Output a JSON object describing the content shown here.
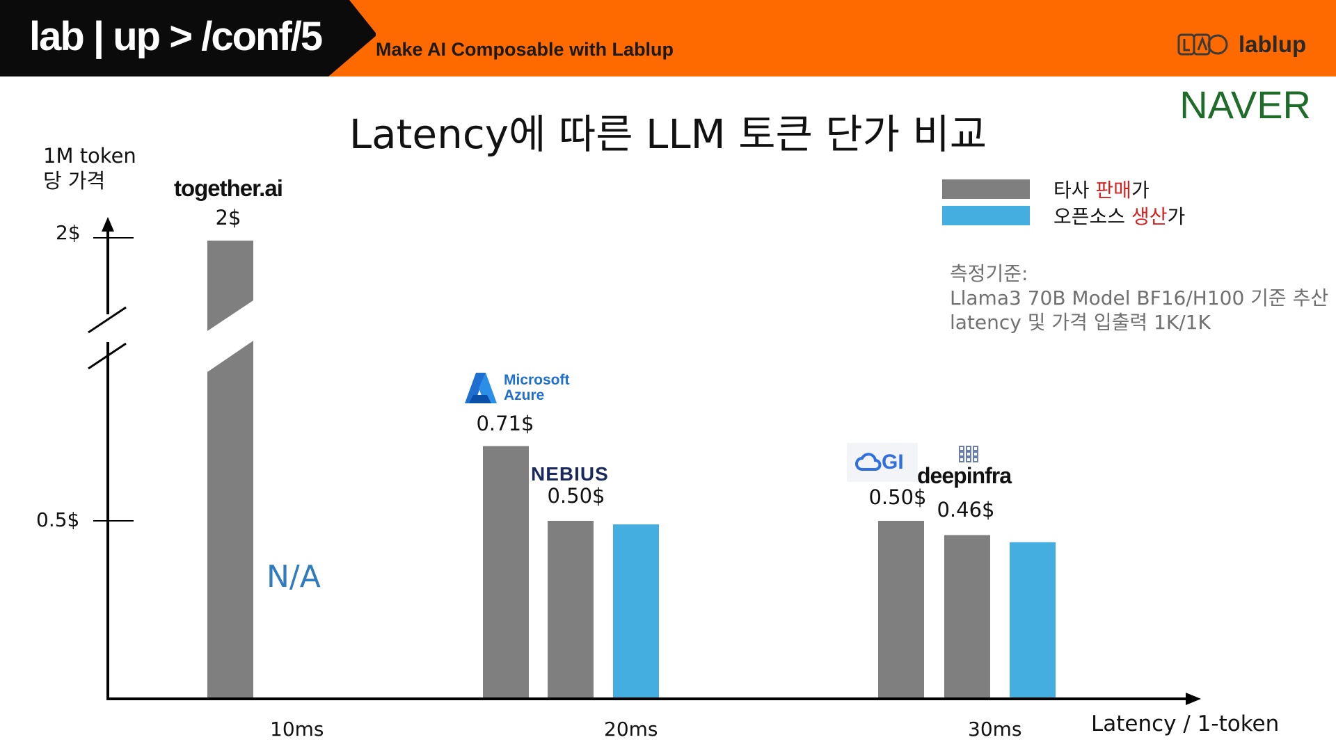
{
  "header": {
    "brand": "lab | up > /conf/5",
    "tagline": "Make AI Composable with Lablup",
    "logo_text": "lablup",
    "naver": "NAVER"
  },
  "chart_data": {
    "type": "bar",
    "title": "Latency에 따른 LLM 토큰 단가 비교",
    "ylabel": "1M token\n당 가격",
    "xlabel": "Latency / 1-token",
    "categories": [
      "10ms",
      "20ms",
      "30ms"
    ],
    "y_ticks": [
      {
        "label": "2$",
        "value": 2.0
      },
      {
        "label": "0.5$",
        "value": 0.5
      }
    ],
    "axis_break": true,
    "legend": {
      "items": [
        {
          "text_parts": [
            {
              "t": "타사 ",
              "red": false
            },
            {
              "t": "판매",
              "red": true
            },
            {
              "t": "가",
              "red": false
            }
          ],
          "color": "#7f7f7f"
        },
        {
          "text_parts": [
            {
              "t": "오픈소스 ",
              "red": false
            },
            {
              "t": "생산",
              "red": true
            },
            {
              "t": "가",
              "red": false
            }
          ],
          "color": "#45aee0"
        }
      ]
    },
    "bars": [
      {
        "category": "10ms",
        "vendor": "together.ai",
        "value": 2.0,
        "label": "2$",
        "series": "타사 판매가"
      },
      {
        "category": "20ms",
        "vendor": "Microsoft Azure",
        "value": 0.71,
        "label": "0.71$",
        "series": "타사 판매가"
      },
      {
        "category": "20ms",
        "vendor": "NEBIUS",
        "value": 0.5,
        "label": "0.50$",
        "series": "타사 판매가"
      },
      {
        "category": "20ms",
        "vendor": "",
        "value": 0.49,
        "label": "",
        "series": "오픈소스 생산가"
      },
      {
        "category": "30ms",
        "vendor": "GI",
        "value": 0.5,
        "label": "0.50$",
        "series": "타사 판매가"
      },
      {
        "category": "30ms",
        "vendor": "deepinfra",
        "value": 0.46,
        "label": "0.46$",
        "series": "타사 판매가"
      },
      {
        "category": "30ms",
        "vendor": "",
        "value": 0.44,
        "label": "",
        "series": "오픈소스 생산가"
      }
    ],
    "na_label": "N/A",
    "note_lines": [
      "측정기준:",
      "Llama3 70B Model BF16/H100 기준 추산",
      "latency 및 가격 입출력 1K/1K"
    ],
    "colors": {
      "gray": "#7f7f7f",
      "blue": "#45aee0",
      "na": "#2f7bbf"
    }
  }
}
